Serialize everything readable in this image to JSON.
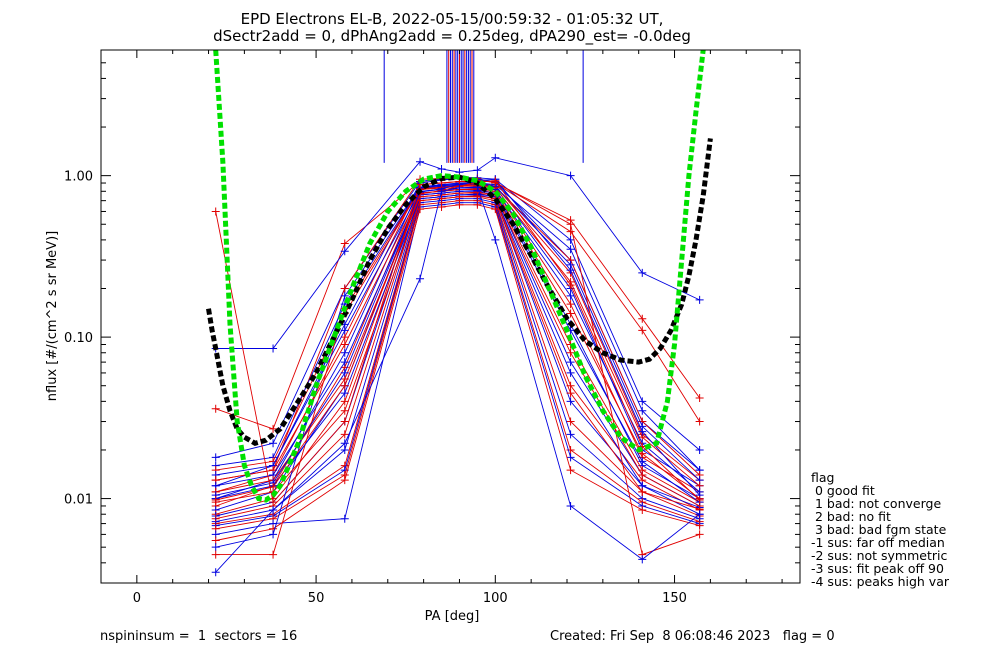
{
  "chart_data": {
    "type": "line",
    "title_line1": "EPD Electrons EL-B, 2022-05-15/00:59:32 - 01:05:32 UT,",
    "title_line2": "dSectr2add = 0, dPhAng2add = 0.25deg, dPA290_est=  -0.0deg",
    "xlabel": "PA [deg]",
    "ylabel": "nflux [#/(cm^2 s sr MeV)]",
    "xlim": [
      -10,
      185
    ],
    "ylim": [
      0.003,
      6.0
    ],
    "yscale": "log",
    "x_ticks": [
      0,
      50,
      100,
      150
    ],
    "x_tick_labels": [
      "0",
      "50",
      "100",
      "150"
    ],
    "y_ticks": [
      0.01,
      0.1,
      1.0
    ],
    "y_tick_labels": [
      "0.01",
      "0.10",
      "1.00"
    ],
    "pa_bins": [
      22,
      38,
      58,
      79,
      85,
      90,
      95,
      100,
      121,
      141,
      157
    ],
    "series_colors": {
      "red": "#e00000",
      "blue": "#0000e0",
      "green": "#00e000",
      "black": "#000000"
    },
    "sample_curves": [
      {
        "color": "red",
        "values": [
          0.036,
          0.027,
          0.38,
          0.92,
          0.95,
          0.96,
          0.95,
          0.9,
          0.53,
          0.13,
          0.042
        ]
      },
      {
        "color": "blue",
        "values": [
          0.085,
          0.085,
          0.34,
          1.22,
          1.1,
          1.05,
          1.08,
          1.29,
          1.0,
          0.25,
          0.17
        ]
      },
      {
        "color": "blue",
        "values": [
          0.018,
          0.022,
          0.2,
          0.92,
          0.96,
          0.98,
          0.97,
          0.95,
          0.4,
          0.04,
          0.02
        ]
      },
      {
        "color": "red",
        "values": [
          0.013,
          0.015,
          0.2,
          0.95,
          0.96,
          0.97,
          0.96,
          0.9,
          0.45,
          0.11,
          0.03
        ]
      },
      {
        "color": "blue",
        "values": [
          0.012,
          0.016,
          0.12,
          0.9,
          0.94,
          0.96,
          0.95,
          0.92,
          0.3,
          0.03,
          0.015
        ]
      },
      {
        "color": "red",
        "values": [
          0.011,
          0.014,
          0.1,
          0.88,
          0.9,
          0.92,
          0.91,
          0.86,
          0.25,
          0.025,
          0.013
        ]
      },
      {
        "color": "blue",
        "values": [
          0.01,
          0.013,
          0.08,
          0.85,
          0.88,
          0.9,
          0.9,
          0.85,
          0.2,
          0.02,
          0.012
        ]
      },
      {
        "color": "red",
        "values": [
          0.009,
          0.012,
          0.065,
          0.82,
          0.84,
          0.86,
          0.86,
          0.82,
          0.16,
          0.018,
          0.011
        ]
      },
      {
        "color": "blue",
        "values": [
          0.0085,
          0.011,
          0.05,
          0.8,
          0.82,
          0.84,
          0.84,
          0.8,
          0.12,
          0.016,
          0.01
        ]
      },
      {
        "color": "red",
        "values": [
          0.008,
          0.01,
          0.04,
          0.78,
          0.8,
          0.82,
          0.82,
          0.78,
          0.09,
          0.015,
          0.0095
        ]
      },
      {
        "color": "blue",
        "values": [
          0.0078,
          0.0095,
          0.03,
          0.76,
          0.78,
          0.8,
          0.8,
          0.76,
          0.07,
          0.014,
          0.009
        ]
      },
      {
        "color": "red",
        "values": [
          0.0075,
          0.009,
          0.025,
          0.74,
          0.76,
          0.78,
          0.78,
          0.74,
          0.05,
          0.013,
          0.0085
        ]
      },
      {
        "color": "blue",
        "values": [
          0.0072,
          0.0085,
          0.02,
          0.72,
          0.74,
          0.76,
          0.76,
          0.72,
          0.04,
          0.012,
          0.008
        ]
      },
      {
        "color": "red",
        "values": [
          0.007,
          0.008,
          0.016,
          0.7,
          0.72,
          0.74,
          0.74,
          0.7,
          0.03,
          0.011,
          0.0078
        ]
      },
      {
        "color": "blue",
        "values": [
          0.0068,
          0.0078,
          0.015,
          0.68,
          0.7,
          0.72,
          0.72,
          0.68,
          0.025,
          0.01,
          0.0075
        ]
      },
      {
        "color": "red",
        "values": [
          0.0065,
          0.0075,
          0.014,
          0.66,
          0.68,
          0.7,
          0.7,
          0.66,
          0.02,
          0.0095,
          0.0072
        ]
      },
      {
        "color": "blue",
        "values": [
          0.006,
          0.007,
          0.0075,
          0.64,
          0.66,
          0.68,
          0.68,
          0.64,
          0.018,
          0.009,
          0.007
        ]
      },
      {
        "color": "red",
        "values": [
          0.0055,
          0.0065,
          0.013,
          0.62,
          0.64,
          0.66,
          0.66,
          0.62,
          0.015,
          0.0085,
          0.0068
        ]
      },
      {
        "color": "blue",
        "values": [
          0.005,
          0.006,
          0.18,
          0.85,
          0.87,
          0.89,
          0.9,
          0.88,
          0.35,
          0.035,
          0.015
        ]
      },
      {
        "color": "red",
        "values": [
          0.0045,
          0.0045,
          0.15,
          0.83,
          0.85,
          0.87,
          0.88,
          0.85,
          0.3,
          0.03,
          0.014
        ]
      },
      {
        "color": "blue",
        "values": [
          0.016,
          0.018,
          0.16,
          0.84,
          0.86,
          0.88,
          0.89,
          0.86,
          0.28,
          0.028,
          0.013
        ]
      },
      {
        "color": "red",
        "values": [
          0.015,
          0.017,
          0.14,
          0.82,
          0.84,
          0.86,
          0.87,
          0.84,
          0.22,
          0.024,
          0.012
        ]
      },
      {
        "color": "blue",
        "values": [
          0.014,
          0.016,
          0.11,
          0.8,
          0.82,
          0.84,
          0.85,
          0.82,
          0.18,
          0.022,
          0.011
        ]
      },
      {
        "color": "red",
        "values": [
          0.013,
          0.015,
          0.09,
          0.78,
          0.8,
          0.82,
          0.83,
          0.8,
          0.14,
          0.019,
          0.01
        ]
      },
      {
        "color": "blue",
        "values": [
          0.012,
          0.014,
          0.07,
          0.76,
          0.78,
          0.8,
          0.81,
          0.78,
          0.11,
          0.017,
          0.0095
        ]
      },
      {
        "color": "red",
        "values": [
          0.011,
          0.013,
          0.055,
          0.74,
          0.76,
          0.78,
          0.79,
          0.76,
          0.08,
          0.014,
          0.009
        ]
      },
      {
        "color": "blue",
        "values": [
          0.01,
          0.012,
          0.045,
          0.72,
          0.74,
          0.76,
          0.77,
          0.74,
          0.06,
          0.012,
          0.0088
        ]
      },
      {
        "color": "red",
        "values": [
          0.0095,
          0.011,
          0.035,
          0.7,
          0.72,
          0.74,
          0.75,
          0.72,
          0.045,
          0.011,
          0.0086
        ]
      },
      {
        "color": "blue",
        "values": [
          0.0105,
          0.0125,
          0.06,
          0.79,
          0.83,
          0.88,
          0.93,
          0.95,
          0.26,
          0.026,
          0.0105
        ]
      },
      {
        "color": "red",
        "values": [
          0.0098,
          0.0118,
          0.05,
          0.77,
          0.81,
          0.86,
          0.91,
          0.93,
          0.21,
          0.021,
          0.0098
        ]
      },
      {
        "color": "red",
        "values": [
          0.6,
          0.0095,
          0.03,
          0.88,
          0.9,
          0.92,
          0.93,
          0.91,
          0.5,
          0.0045,
          0.006
        ]
      },
      {
        "color": "blue",
        "values": [
          0.0035,
          0.0085,
          0.022,
          0.23,
          0.8,
          0.84,
          0.85,
          0.4,
          0.009,
          0.0042,
          0.008
        ]
      }
    ],
    "blue_vertical_marks_x": [
      69,
      86.5,
      87.5,
      88,
      89,
      89.5,
      90.5,
      91,
      92,
      92.5,
      93,
      94,
      124.5
    ],
    "red_vertical_marks_x": [
      87,
      88.5,
      90,
      91.5,
      93.5
    ],
    "vertical_mark_range": [
      1.2,
      6.0
    ],
    "green_fit_curve": {
      "x": [
        22,
        24,
        26,
        28,
        30,
        32,
        34,
        36,
        38,
        40,
        45,
        50,
        55,
        60,
        65,
        70,
        75,
        80,
        85,
        90,
        95,
        100,
        105,
        110,
        115,
        120,
        125,
        130,
        135,
        140,
        145,
        148,
        150,
        152,
        154,
        156,
        158
      ],
      "y": [
        6.0,
        1.2,
        0.12,
        0.03,
        0.016,
        0.012,
        0.01,
        0.0098,
        0.0105,
        0.012,
        0.022,
        0.05,
        0.1,
        0.2,
        0.38,
        0.6,
        0.8,
        0.95,
        1.0,
        0.98,
        0.93,
        0.8,
        0.58,
        0.36,
        0.2,
        0.11,
        0.058,
        0.035,
        0.024,
        0.02,
        0.022,
        0.04,
        0.09,
        0.3,
        1.0,
        2.5,
        6.0
      ]
    },
    "black_fit_curve": {
      "x": [
        20,
        21,
        22,
        23,
        24,
        26,
        28,
        30,
        33,
        36,
        40,
        45,
        50,
        55,
        60,
        65,
        70,
        75,
        80,
        85,
        90,
        95,
        100,
        105,
        110,
        115,
        120,
        125,
        130,
        135,
        140,
        143,
        146,
        149,
        152,
        154,
        156,
        158,
        160
      ],
      "y": [
        0.15,
        0.11,
        0.085,
        0.065,
        0.05,
        0.035,
        0.027,
        0.024,
        0.022,
        0.023,
        0.027,
        0.04,
        0.06,
        0.1,
        0.17,
        0.3,
        0.47,
        0.66,
        0.85,
        0.96,
        0.98,
        0.9,
        0.72,
        0.5,
        0.32,
        0.2,
        0.13,
        0.095,
        0.08,
        0.072,
        0.07,
        0.073,
        0.085,
        0.11,
        0.16,
        0.24,
        0.4,
        0.75,
        1.7
      ]
    }
  },
  "legend": {
    "title": "flag",
    "items": [
      " 0 good fit",
      " 1 bad: not converge",
      " 2 bad: no fit",
      " 3 bad: bad fgm state",
      "-1 sus: far off median",
      "-2 sus: not symmetric",
      "-3 sus: fit peak off 90",
      "-4 sus: peaks high var"
    ]
  },
  "footer": {
    "left": "nspininsum =  1  sectors = 16",
    "right": "Created: Fri Sep  8 06:08:46 2023   flag = 0"
  }
}
